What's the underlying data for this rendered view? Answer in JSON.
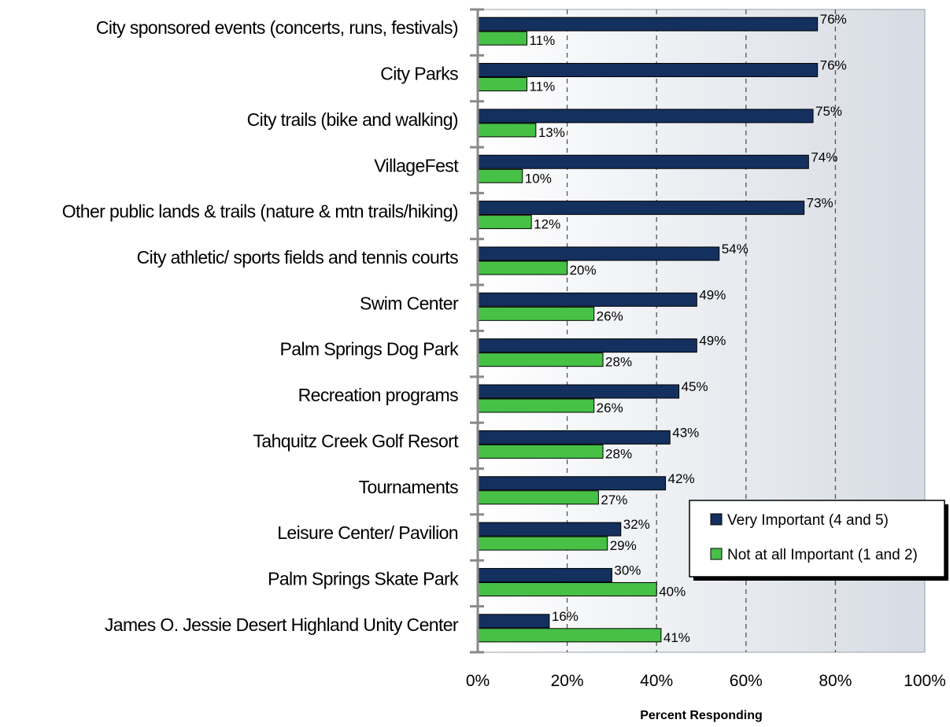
{
  "chart_data": {
    "type": "bar",
    "orientation": "horizontal",
    "categories": [
      "City sponsored events (concerts, runs, festivals)",
      "City Parks",
      "City trails (bike and walking)",
      "VillageFest",
      "Other public lands & trails (nature & mtn trails/hiking)",
      "City athletic/ sports fields and tennis courts",
      "Swim Center",
      "Palm Springs Dog Park",
      "Recreation programs",
      "Tahquitz Creek Golf Resort",
      "Tournaments",
      "Leisure Center/ Pavilion",
      "Palm Springs Skate Park",
      "James O. Jessie Desert Highland Unity Center"
    ],
    "series": [
      {
        "name": "Very Important (4 and 5)",
        "color": "#13305e",
        "values": [
          76,
          76,
          75,
          74,
          73,
          54,
          49,
          49,
          45,
          43,
          42,
          32,
          30,
          16
        ],
        "labels": [
          "76%",
          "76%",
          "75%",
          "74%",
          "73%",
          "54%",
          "49%",
          "49%",
          "45%",
          "43%",
          "42%",
          "32%",
          "30%",
          "16%"
        ]
      },
      {
        "name": "Not at all Important (1 and 2)",
        "color": "#46c146",
        "values": [
          11,
          11,
          13,
          10,
          12,
          20,
          26,
          28,
          26,
          28,
          27,
          29,
          40,
          41
        ],
        "labels": [
          "11%",
          "11%",
          "13%",
          "10%",
          "12%",
          "20%",
          "26%",
          "28%",
          "26%",
          "28%",
          "27%",
          "29%",
          "40%",
          "41%"
        ]
      }
    ],
    "xlim": [
      0,
      100
    ],
    "xticks": [
      0,
      20,
      40,
      60,
      80,
      100
    ],
    "xtick_labels": [
      "0%",
      "20%",
      "40%",
      "60%",
      "80%",
      "100%"
    ],
    "xlabel": "Percent Responding",
    "title": "",
    "grid": "vertical dashed",
    "legend_placement": "bottom-right"
  }
}
